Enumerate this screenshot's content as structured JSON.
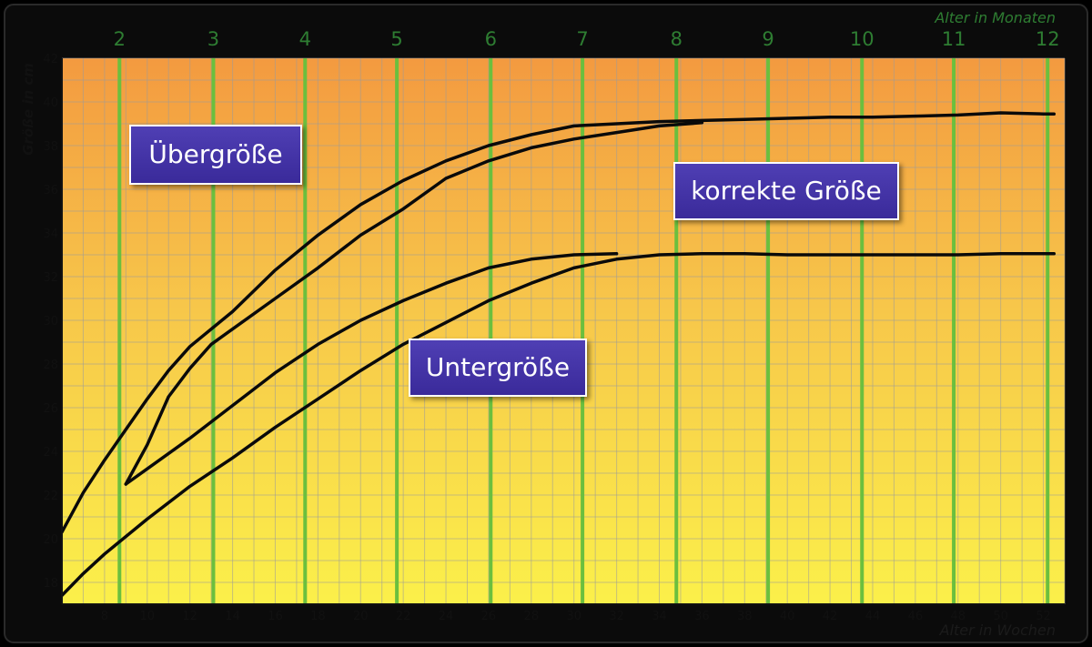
{
  "chart_data": {
    "type": "line",
    "xlabel": "Alter in Wochen",
    "ylabel": "Größe in cm",
    "top_axis_label": "Alter in Monaten",
    "xlim": [
      6,
      53
    ],
    "ylim": [
      17,
      42
    ],
    "x_ticks": [
      8,
      10,
      12,
      14,
      16,
      18,
      20,
      22,
      24,
      26,
      28,
      30,
      32,
      34,
      36,
      38,
      40,
      42,
      44,
      46,
      48,
      50,
      52
    ],
    "y_ticks": [
      18,
      20,
      22,
      24,
      26,
      28,
      30,
      32,
      34,
      36,
      38,
      40,
      42
    ],
    "month_lines": [
      {
        "label": "2",
        "week": 8.7
      },
      {
        "label": "3",
        "week": 13.1
      },
      {
        "label": "4",
        "week": 17.4
      },
      {
        "label": "5",
        "week": 21.7
      },
      {
        "label": "6",
        "week": 26.1
      },
      {
        "label": "7",
        "week": 30.4
      },
      {
        "label": "8",
        "week": 34.8
      },
      {
        "label": "9",
        "week": 39.1
      },
      {
        "label": "10",
        "week": 43.5
      },
      {
        "label": "11",
        "week": 47.8
      },
      {
        "label": "12",
        "week": 52.2
      }
    ],
    "series": [
      {
        "points": [
          [
            6,
            20.3
          ],
          [
            7,
            22.1
          ],
          [
            8,
            23.6
          ],
          [
            9,
            25.0
          ],
          [
            10,
            26.4
          ],
          [
            11,
            27.7
          ],
          [
            12,
            28.8
          ],
          [
            14,
            30.4
          ],
          [
            16,
            32.3
          ],
          [
            18,
            33.9
          ],
          [
            20,
            35.3
          ],
          [
            22,
            36.4
          ],
          [
            24,
            37.3
          ],
          [
            26,
            38.0
          ],
          [
            28,
            38.5
          ],
          [
            30,
            38.9
          ],
          [
            32,
            39.0
          ],
          [
            34,
            39.1
          ],
          [
            36,
            39.15
          ],
          [
            38,
            39.2
          ],
          [
            40,
            39.25
          ],
          [
            42,
            39.3
          ],
          [
            44,
            39.3
          ],
          [
            46,
            39.35
          ],
          [
            48,
            39.4
          ],
          [
            50,
            39.5
          ],
          [
            52,
            39.45
          ],
          [
            52.5,
            39.45
          ]
        ]
      },
      {
        "points": [
          [
            9,
            22.5
          ],
          [
            10,
            24.3
          ],
          [
            11,
            26.5
          ],
          [
            12,
            27.8
          ],
          [
            13,
            28.9
          ],
          [
            14,
            29.6
          ],
          [
            16,
            31.0
          ],
          [
            18,
            32.4
          ],
          [
            20,
            33.9
          ],
          [
            22,
            35.1
          ],
          [
            24,
            36.5
          ],
          [
            26,
            37.3
          ],
          [
            28,
            37.9
          ],
          [
            30,
            38.3
          ],
          [
            32,
            38.6
          ],
          [
            34,
            38.9
          ],
          [
            36,
            39.05
          ]
        ]
      },
      {
        "points": [
          [
            9,
            22.5
          ],
          [
            10,
            23.2
          ],
          [
            12,
            24.6
          ],
          [
            14,
            26.1
          ],
          [
            16,
            27.6
          ],
          [
            18,
            28.9
          ],
          [
            20,
            30.0
          ],
          [
            22,
            30.9
          ],
          [
            24,
            31.7
          ],
          [
            26,
            32.4
          ],
          [
            28,
            32.8
          ],
          [
            30,
            33.0
          ],
          [
            32,
            33.05
          ]
        ]
      },
      {
        "points": [
          [
            6,
            17.4
          ],
          [
            7,
            18.4
          ],
          [
            8,
            19.3
          ],
          [
            10,
            20.9
          ],
          [
            12,
            22.4
          ],
          [
            14,
            23.7
          ],
          [
            16,
            25.1
          ],
          [
            18,
            26.4
          ],
          [
            20,
            27.7
          ],
          [
            22,
            28.9
          ],
          [
            24,
            29.9
          ],
          [
            26,
            30.9
          ],
          [
            28,
            31.7
          ],
          [
            30,
            32.4
          ],
          [
            32,
            32.8
          ],
          [
            34,
            33.0
          ],
          [
            36,
            33.05
          ],
          [
            38,
            33.05
          ],
          [
            40,
            33.0
          ],
          [
            42,
            33.0
          ],
          [
            44,
            33.0
          ],
          [
            46,
            33.0
          ],
          [
            48,
            33.0
          ],
          [
            50,
            33.05
          ],
          [
            52,
            33.05
          ],
          [
            52.5,
            33.05
          ]
        ]
      }
    ],
    "annotations": [
      "Übergröße",
      "korrekte Größe",
      "Untergröße"
    ]
  },
  "labels": {
    "over": "Übergröße",
    "correct": "korrekte Größe",
    "under": "Untergröße"
  },
  "colors": {
    "bg_top": "#f39a40",
    "bg_bottom": "#fbf04a",
    "grid": "#9a9a9a",
    "month_line": "#6bbf3e",
    "month_text": "#2e7d32",
    "curve": "#0a0a0a",
    "label_bg": "#4535a8"
  }
}
